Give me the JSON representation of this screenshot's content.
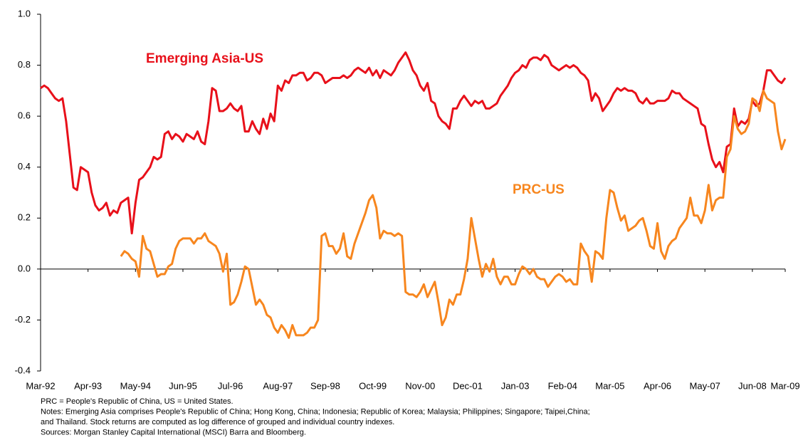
{
  "chart_data": {
    "type": "line",
    "categories": [
      "Mar-92",
      null,
      null,
      null,
      null,
      null,
      null,
      null,
      null,
      null,
      null,
      null,
      null,
      "Apr-93",
      null,
      null,
      null,
      null,
      null,
      null,
      null,
      null,
      null,
      null,
      null,
      null,
      "May-94",
      null,
      null,
      null,
      null,
      null,
      null,
      null,
      null,
      null,
      null,
      null,
      null,
      "Jun-95",
      null,
      null,
      null,
      null,
      null,
      null,
      null,
      null,
      null,
      null,
      null,
      null,
      "Jul-96",
      null,
      null,
      null,
      null,
      null,
      null,
      null,
      null,
      null,
      null,
      null,
      null,
      "Aug-97",
      null,
      null,
      null,
      null,
      null,
      null,
      null,
      null,
      null,
      null,
      null,
      null,
      "Sep-98",
      null,
      null,
      null,
      null,
      null,
      null,
      null,
      null,
      null,
      null,
      null,
      null,
      "Oct-99",
      null,
      null,
      null,
      null,
      null,
      null,
      null,
      null,
      null,
      null,
      null,
      null,
      "Nov-00",
      null,
      null,
      null,
      null,
      null,
      null,
      null,
      null,
      null,
      null,
      null,
      null,
      "Dec-01",
      null,
      null,
      null,
      null,
      null,
      null,
      null,
      null,
      null,
      null,
      null,
      null,
      "Jan-03",
      null,
      null,
      null,
      null,
      null,
      null,
      null,
      null,
      null,
      null,
      null,
      null,
      "Feb-04",
      null,
      null,
      null,
      null,
      null,
      null,
      null,
      null,
      null,
      null,
      null,
      null,
      "Mar-05",
      null,
      null,
      null,
      null,
      null,
      null,
      null,
      null,
      null,
      null,
      null,
      null,
      "Apr-06",
      null,
      null,
      null,
      null,
      null,
      null,
      null,
      null,
      null,
      null,
      null,
      null,
      "May-07",
      null,
      null,
      null,
      null,
      null,
      null,
      null,
      null,
      null,
      null,
      null,
      null,
      "Jun-08",
      null,
      null,
      null,
      null,
      null,
      null,
      null,
      null,
      "Mar-09"
    ],
    "series": [
      {
        "name": "Emerging Asia-US",
        "color": "#e8101a",
        "values": [
          0.71,
          0.72,
          0.71,
          0.69,
          0.67,
          0.66,
          0.67,
          0.58,
          0.45,
          0.32,
          0.31,
          0.4,
          0.39,
          0.38,
          0.3,
          0.25,
          0.23,
          0.24,
          0.26,
          0.21,
          0.23,
          0.22,
          0.26,
          0.27,
          0.28,
          0.14,
          0.26,
          0.35,
          0.36,
          0.38,
          0.4,
          0.44,
          0.43,
          0.44,
          0.53,
          0.54,
          0.51,
          0.53,
          0.52,
          0.5,
          0.53,
          0.52,
          0.51,
          0.54,
          0.5,
          0.49,
          0.58,
          0.71,
          0.7,
          0.62,
          0.62,
          0.63,
          0.65,
          0.63,
          0.62,
          0.64,
          0.54,
          0.54,
          0.58,
          0.55,
          0.53,
          0.59,
          0.55,
          0.61,
          0.58,
          0.72,
          0.7,
          0.74,
          0.73,
          0.76,
          0.76,
          0.77,
          0.77,
          0.74,
          0.75,
          0.77,
          0.77,
          0.76,
          0.73,
          0.74,
          0.75,
          0.75,
          0.75,
          0.76,
          0.75,
          0.76,
          0.78,
          0.79,
          0.78,
          0.77,
          0.79,
          0.76,
          0.78,
          0.75,
          0.78,
          0.77,
          0.76,
          0.78,
          0.81,
          0.83,
          0.85,
          0.82,
          0.78,
          0.76,
          0.72,
          0.7,
          0.73,
          0.66,
          0.65,
          0.6,
          0.58,
          0.57,
          0.55,
          0.63,
          0.63,
          0.66,
          0.68,
          0.66,
          0.64,
          0.66,
          0.65,
          0.66,
          0.63,
          0.63,
          0.64,
          0.65,
          0.68,
          0.7,
          0.72,
          0.75,
          0.77,
          0.78,
          0.8,
          0.79,
          0.82,
          0.83,
          0.83,
          0.82,
          0.84,
          0.83,
          0.8,
          0.79,
          0.78,
          0.79,
          0.8,
          0.79,
          0.8,
          0.79,
          0.77,
          0.76,
          0.74,
          0.66,
          0.69,
          0.67,
          0.62,
          0.64,
          0.66,
          0.69,
          0.71,
          0.7,
          0.71,
          0.7,
          0.7,
          0.69,
          0.66,
          0.65,
          0.67,
          0.65,
          0.65,
          0.66,
          0.66,
          0.66,
          0.67,
          0.7,
          0.69,
          0.69,
          0.67,
          0.66,
          0.65,
          0.64,
          0.63,
          0.57,
          0.56,
          0.49,
          0.43,
          0.4,
          0.42,
          0.38,
          0.48,
          0.49,
          0.63,
          0.56,
          0.58,
          0.57,
          0.59,
          0.66,
          0.64,
          0.65,
          0.7,
          0.78,
          0.78,
          0.76,
          0.74,
          0.73,
          0.75
        ]
      },
      {
        "name": "PRC-US",
        "color": "#f7861e",
        "values": [
          null,
          null,
          null,
          null,
          null,
          null,
          null,
          null,
          null,
          null,
          null,
          null,
          null,
          null,
          null,
          null,
          null,
          null,
          null,
          null,
          null,
          null,
          0.05,
          0.07,
          0.06,
          0.04,
          0.03,
          -0.03,
          0.13,
          0.08,
          0.07,
          0.02,
          -0.03,
          -0.02,
          -0.02,
          0.01,
          0.02,
          0.08,
          0.11,
          0.12,
          0.12,
          0.12,
          0.1,
          0.12,
          0.12,
          0.14,
          0.11,
          0.1,
          0.09,
          0.06,
          -0.01,
          0.06,
          -0.14,
          -0.13,
          -0.1,
          -0.05,
          0.01,
          0.0,
          -0.07,
          -0.14,
          -0.12,
          -0.14,
          -0.18,
          -0.19,
          -0.23,
          -0.25,
          -0.22,
          -0.24,
          -0.27,
          -0.22,
          -0.26,
          -0.26,
          -0.26,
          -0.25,
          -0.23,
          -0.23,
          -0.2,
          0.13,
          0.14,
          0.09,
          0.09,
          0.06,
          0.08,
          0.14,
          0.05,
          0.04,
          0.1,
          0.14,
          0.18,
          0.22,
          0.27,
          0.29,
          0.24,
          0.12,
          0.15,
          0.14,
          0.14,
          0.13,
          0.14,
          0.13,
          -0.09,
          -0.1,
          -0.1,
          -0.11,
          -0.09,
          -0.06,
          -0.11,
          -0.08,
          -0.05,
          -0.13,
          -0.22,
          -0.19,
          -0.12,
          -0.14,
          -0.1,
          -0.1,
          -0.04,
          0.04,
          0.2,
          0.12,
          0.04,
          -0.03,
          0.02,
          -0.01,
          0.04,
          -0.03,
          -0.06,
          -0.03,
          -0.03,
          -0.06,
          -0.06,
          -0.02,
          0.01,
          0.0,
          -0.02,
          0.0,
          -0.03,
          -0.04,
          -0.04,
          -0.07,
          -0.05,
          -0.03,
          -0.02,
          -0.03,
          -0.05,
          -0.04,
          -0.06,
          -0.06,
          0.1,
          0.07,
          0.05,
          -0.05,
          0.07,
          0.06,
          0.04,
          0.2,
          0.31,
          0.3,
          0.24,
          0.19,
          0.21,
          0.15,
          0.16,
          0.17,
          0.19,
          0.2,
          0.15,
          0.09,
          0.08,
          0.18,
          0.07,
          0.04,
          0.09,
          0.11,
          0.12,
          0.16,
          0.18,
          0.2,
          0.28,
          0.21,
          0.21,
          0.18,
          0.23,
          0.33,
          0.23,
          0.27,
          0.28,
          0.28,
          0.44,
          0.47,
          0.6,
          0.55,
          0.53,
          0.54,
          0.57,
          0.67,
          0.66,
          0.62,
          0.7,
          0.67,
          0.66,
          0.65,
          0.54,
          0.47,
          0.51
        ]
      }
    ],
    "ylim": [
      -0.4,
      1
    ],
    "yticks": [
      -0.4,
      -0.2,
      {
        "value": 0,
        "label": "0.0"
      },
      0.2,
      0.4,
      0.6,
      0.8,
      {
        "value": 1,
        "label": "1.0"
      }
    ],
    "grid": false,
    "notes": [
      "PRC = People's Republic of China, US = United States.",
      "Notes: Emerging Asia comprises People's Republic of China; Hong Kong, China; Indonesia; Republic of Korea; Malaysia; Philippines; Singapore; Taipei,China;",
      "and Thailand. Stock returns are computed as log difference of grouped and individual country indexes.",
      "Sources: Morgan Stanley Capital International (MSCI) Barra and Bloomberg."
    ]
  }
}
